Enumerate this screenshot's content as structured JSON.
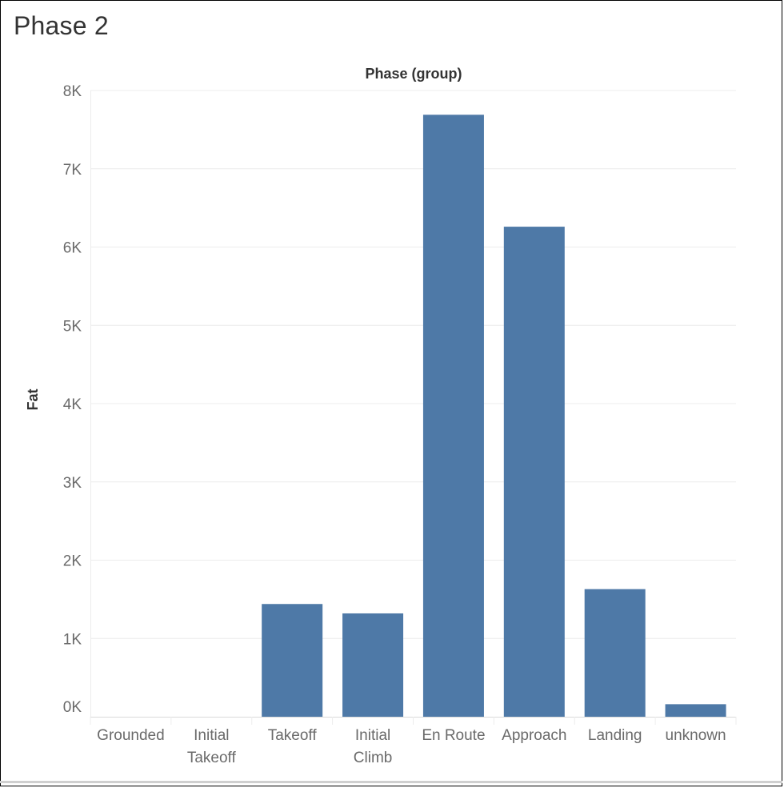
{
  "page": {
    "title": "Phase 2"
  },
  "chart_data": {
    "type": "bar",
    "column_header": "Phase (group)",
    "ylabel": "Fat",
    "xlabel": "",
    "categories": [
      "Grounded",
      "Initial Takeoff",
      "Takeoff",
      "Initial Climb",
      "En Route",
      "Approach",
      "Landing",
      "unknown"
    ],
    "category_lines": [
      [
        "Grounded"
      ],
      [
        "Initial",
        "Takeoff"
      ],
      [
        "Takeoff"
      ],
      [
        "Initial",
        "Climb"
      ],
      [
        "En Route"
      ],
      [
        "Approach"
      ],
      [
        "Landing"
      ],
      [
        "unknown"
      ]
    ],
    "values": [
      0,
      0,
      1440,
      1320,
      7690,
      6260,
      1630,
      160
    ],
    "ylim": [
      0,
      8000
    ],
    "yticks": [
      0,
      1000,
      2000,
      3000,
      4000,
      5000,
      6000,
      7000,
      8000
    ],
    "ytick_labels": [
      "0K",
      "1K",
      "2K",
      "3K",
      "4K",
      "5K",
      "6K",
      "7K",
      "8K"
    ],
    "grid": true,
    "colors": {
      "bar": "#4e79a7",
      "grid": "#ececec",
      "axis": "#d9d9d9"
    }
  }
}
